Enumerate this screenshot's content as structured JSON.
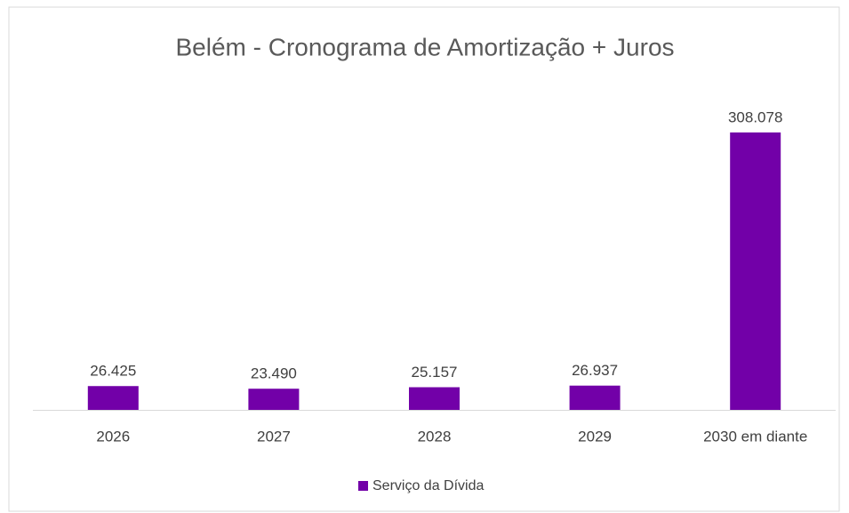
{
  "chart_data": {
    "type": "bar",
    "title": "Belém - Cronograma de Amortização + Juros",
    "categories": [
      "2026",
      "2027",
      "2028",
      "2029",
      "2030 em diante"
    ],
    "series": [
      {
        "name": "Serviço da Dívida",
        "color": "#7200a8",
        "values": [
          26425,
          23490,
          25157,
          26937,
          308078
        ],
        "value_labels": [
          "26.425",
          "23.490",
          "25.157",
          "26.937",
          "308.078"
        ]
      }
    ],
    "legend": "bottom"
  }
}
